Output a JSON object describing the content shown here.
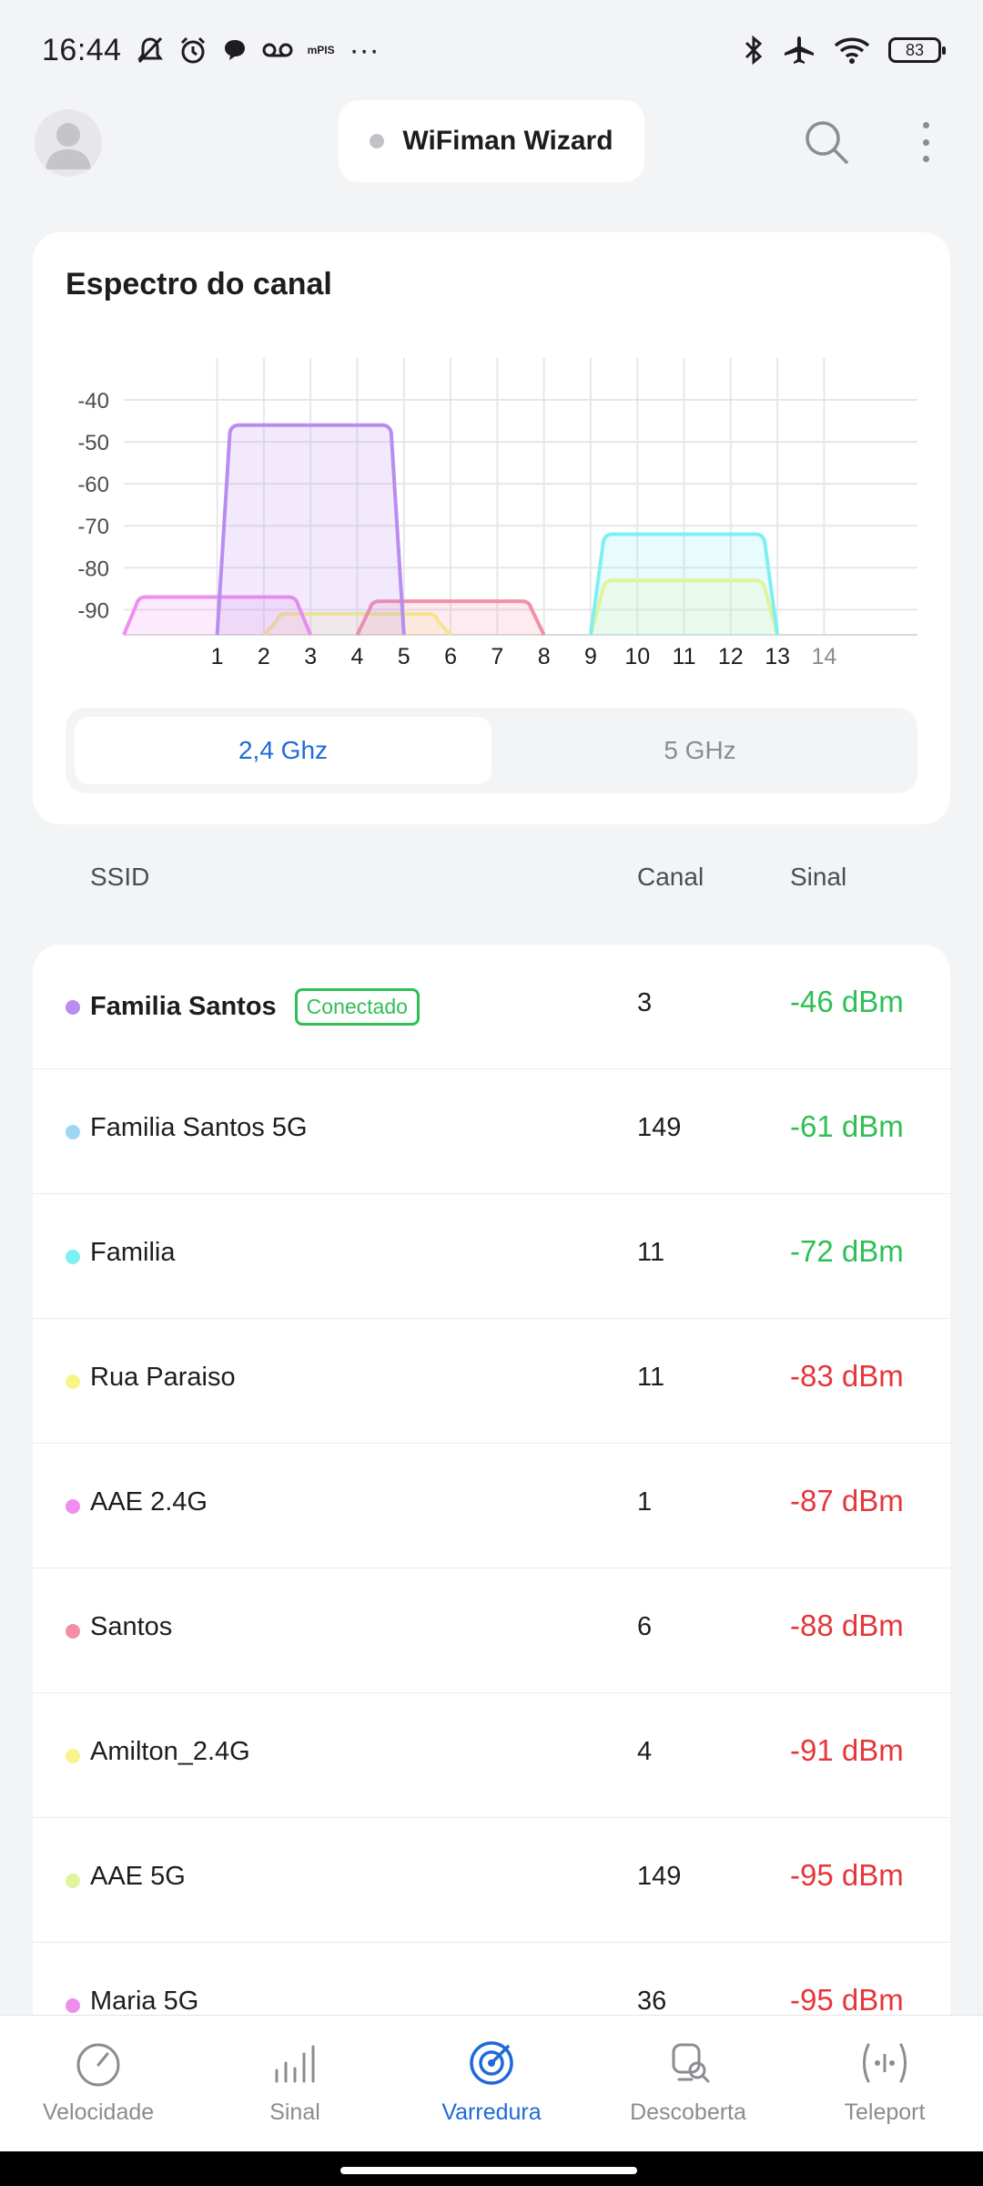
{
  "status": {
    "time": "16:44",
    "carrier_small": "mPIS",
    "overflow": "···",
    "battery": "83"
  },
  "header": {
    "title": "WiFiman Wizard"
  },
  "spectrum": {
    "title": "Espectro do canal",
    "bands": [
      "2,4 Ghz",
      "5 GHz"
    ],
    "active_band": "2,4 Ghz"
  },
  "chart_data": {
    "type": "area",
    "y_ticks": [
      "-40",
      "-50",
      "-60",
      "-70",
      "-80",
      "-90"
    ],
    "x_ticks": [
      "1",
      "2",
      "3",
      "4",
      "5",
      "6",
      "7",
      "8",
      "9",
      "10",
      "11",
      "12",
      "13",
      "14"
    ],
    "ylim": [
      -96,
      -30
    ],
    "xlim": [
      -1,
      16
    ],
    "grid": true,
    "series": [
      {
        "channel": 3,
        "signal": -46,
        "color": "#b98cf0"
      },
      {
        "channel": 11,
        "signal": -72,
        "color": "#7ff0f2"
      },
      {
        "channel": 11,
        "signal": -83,
        "color": "#f7f58a"
      },
      {
        "channel": 1,
        "signal": -87,
        "color": "#f08ef0"
      },
      {
        "channel": 6,
        "signal": -88,
        "color": "#f58fa8"
      },
      {
        "channel": 4,
        "signal": -91,
        "color": "#f7f58a"
      }
    ]
  },
  "columns": {
    "ssid": "SSID",
    "channel": "Canal",
    "signal": "Sinal"
  },
  "networks": [
    {
      "ssid": "Familia Santos",
      "badge": "Conectado",
      "channel": "3",
      "signal": "-46 dBm",
      "quality": "good",
      "color": "#b98cf0",
      "bold": true
    },
    {
      "ssid": "Familia Santos 5G",
      "channel": "149",
      "signal": "-61 dBm",
      "quality": "good",
      "color": "#9fd6f5"
    },
    {
      "ssid": "Familia",
      "channel": "11",
      "signal": "-72 dBm",
      "quality": "good",
      "color": "#7ff0f2"
    },
    {
      "ssid": "Rua Paraiso",
      "channel": "11",
      "signal": "-83 dBm",
      "quality": "bad",
      "color": "#f7f58a"
    },
    {
      "ssid": "AAE 2.4G",
      "channel": "1",
      "signal": "-87 dBm",
      "quality": "bad",
      "color": "#f08ef0"
    },
    {
      "ssid": "Santos",
      "channel": "6",
      "signal": "-88 dBm",
      "quality": "bad",
      "color": "#f58fa8"
    },
    {
      "ssid": "Amilton_2.4G",
      "channel": "4",
      "signal": "-91 dBm",
      "quality": "bad",
      "color": "#f7f58a"
    },
    {
      "ssid": "AAE 5G",
      "channel": "149",
      "signal": "-95 dBm",
      "quality": "bad",
      "color": "#dff59a"
    },
    {
      "ssid": "Maria 5G",
      "channel": "36",
      "signal": "-95 dBm",
      "quality": "bad",
      "color": "#f08ef0"
    }
  ],
  "nav": {
    "items": [
      "Velocidade",
      "Sinal",
      "Varredura",
      "Descoberta",
      "Teleport"
    ],
    "active": "Varredura",
    "icons": [
      "speedometer-icon",
      "signal-bars-icon",
      "radar-icon",
      "discovery-icon",
      "teleport-icon"
    ]
  }
}
